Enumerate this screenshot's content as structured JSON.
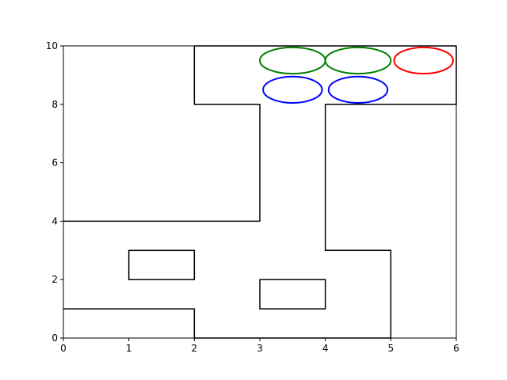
{
  "chart_data": {
    "type": "diagram",
    "title": "",
    "xlabel": "",
    "ylabel": "",
    "xlim": [
      0,
      6
    ],
    "ylim": [
      0,
      10
    ],
    "x_ticks": [
      0,
      1,
      2,
      3,
      4,
      5,
      6
    ],
    "y_ticks": [
      0,
      2,
      4,
      6,
      8,
      10
    ],
    "grid": false,
    "polylines": [
      {
        "name": "wall-top-left-notch",
        "points": [
          [
            2,
            10
          ],
          [
            2,
            8
          ],
          [
            3,
            8
          ],
          [
            3,
            4
          ],
          [
            0,
            4
          ]
        ]
      },
      {
        "name": "wall-top-right-notch",
        "points": [
          [
            6,
            10
          ],
          [
            6,
            8
          ],
          [
            4,
            8
          ],
          [
            4,
            3
          ],
          [
            5,
            3
          ],
          [
            5,
            0
          ],
          [
            2,
            0
          ],
          [
            2,
            1
          ],
          [
            0,
            1
          ]
        ]
      },
      {
        "name": "wall-top-edge",
        "points": [
          [
            2,
            10
          ],
          [
            6,
            10
          ]
        ]
      }
    ],
    "rectangles": [
      {
        "name": "obstacle-left",
        "x": 1,
        "y": 2,
        "width": 1,
        "height": 1
      },
      {
        "name": "obstacle-center",
        "x": 3,
        "y": 1,
        "width": 1,
        "height": 1
      }
    ],
    "ellipses": [
      {
        "name": "green-ellipse-1",
        "cx": 3.5,
        "cy": 9.5,
        "rx": 0.5,
        "ry": 0.45,
        "color": "#008000"
      },
      {
        "name": "green-ellipse-2",
        "cx": 4.5,
        "cy": 9.5,
        "rx": 0.5,
        "ry": 0.45,
        "color": "#008000"
      },
      {
        "name": "red-ellipse",
        "cx": 5.5,
        "cy": 9.5,
        "rx": 0.45,
        "ry": 0.45,
        "color": "#ff0000"
      },
      {
        "name": "blue-ellipse-1",
        "cx": 3.5,
        "cy": 8.5,
        "rx": 0.45,
        "ry": 0.45,
        "color": "#0000ff"
      },
      {
        "name": "blue-ellipse-2",
        "cx": 4.5,
        "cy": 8.5,
        "rx": 0.45,
        "ry": 0.45,
        "color": "#0000ff"
      }
    ]
  }
}
